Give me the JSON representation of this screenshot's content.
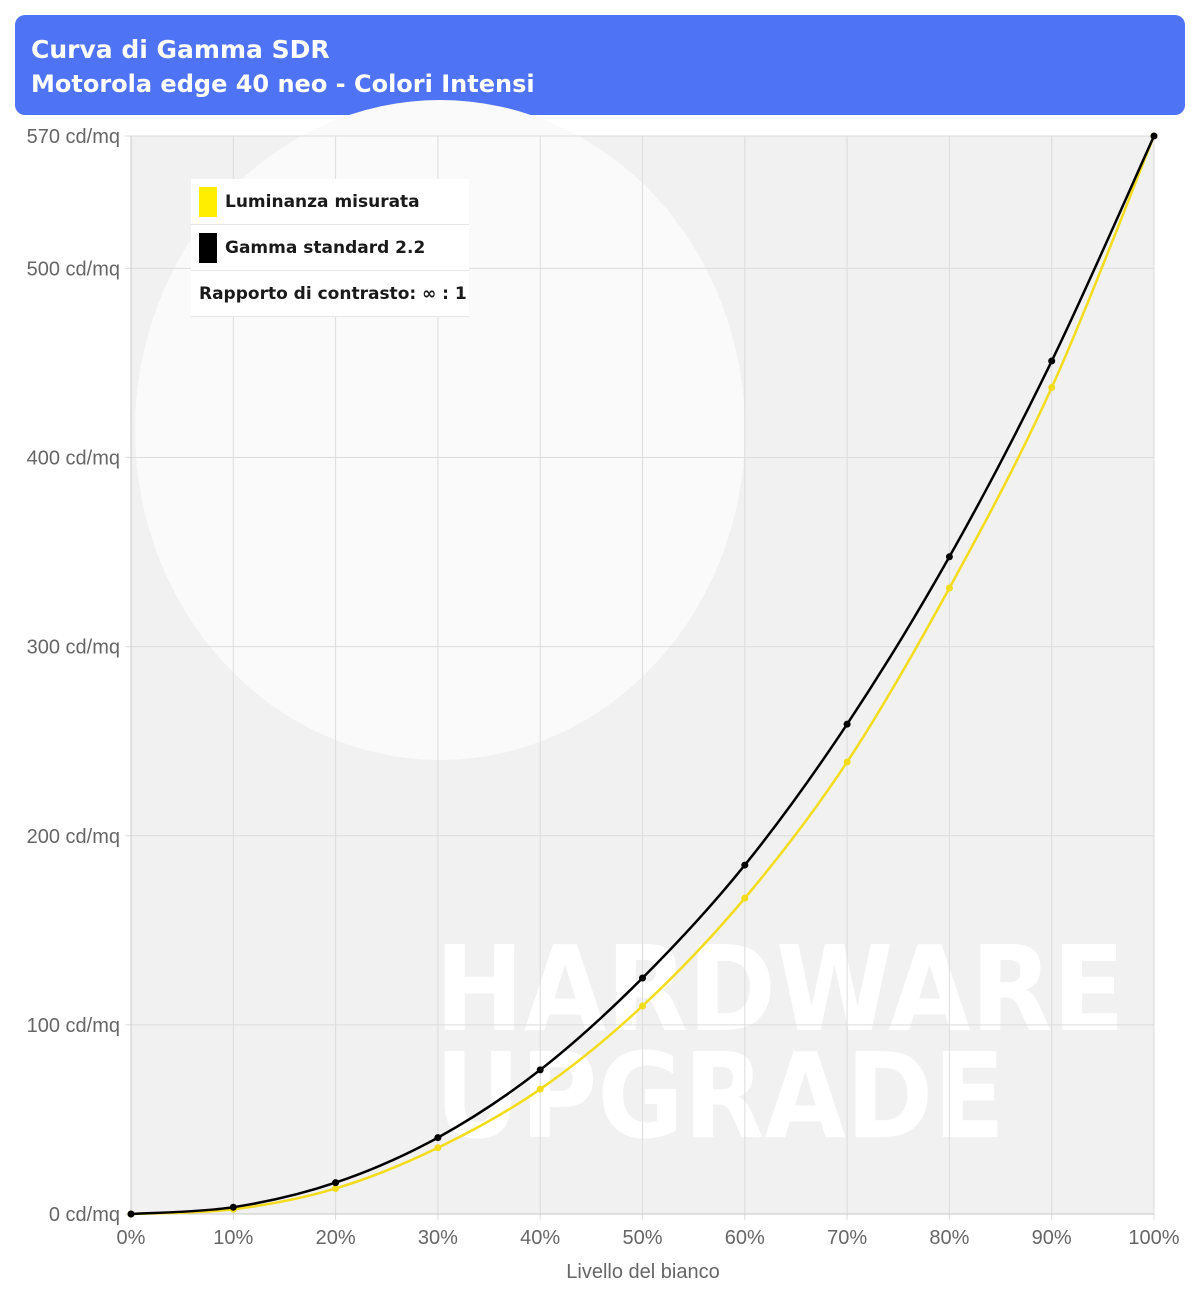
{
  "header": {
    "title": "Curva di Gamma SDR",
    "subtitle": "Motorola edge 40 neo - Colori Intensi",
    "background": "#4f73f5"
  },
  "legend": {
    "measured_label": "Luminanza misurata",
    "standard_label": "Gamma standard 2.2",
    "contrast_label": "Rapporto di contrasto: ∞ : 1"
  },
  "watermark": {
    "line1": "HARDWARE",
    "line2": "UPGRADE"
  },
  "chart_data": {
    "type": "line",
    "xlabel": "Livello del bianco",
    "ylabel": "",
    "x": [
      0,
      10,
      20,
      30,
      40,
      50,
      60,
      70,
      80,
      90,
      100
    ],
    "x_tick_labels": [
      "0%",
      "10%",
      "20%",
      "30%",
      "40%",
      "50%",
      "60%",
      "70%",
      "80%",
      "90%",
      "100%"
    ],
    "y_ticks": [
      0,
      100,
      200,
      300,
      400,
      500,
      570
    ],
    "y_tick_labels": [
      "0 cd/mq",
      "100 cd/mq",
      "200 cd/mq",
      "300 cd/mq",
      "400 cd/mq",
      "500 cd/mq",
      "570 cd/mq"
    ],
    "ylim": [
      0,
      570
    ],
    "xlim": [
      0,
      100
    ],
    "grid": true,
    "legend_position": "top-left",
    "series": [
      {
        "name": "Luminanza misurata",
        "color": "#f2dc1c",
        "values": [
          0,
          2.5,
          13.5,
          35,
          66,
          110,
          167,
          239,
          331,
          437,
          570
        ]
      },
      {
        "name": "Gamma standard 2.2",
        "color": "#000000",
        "values": [
          0,
          3.6,
          16.6,
          40.4,
          76.2,
          124.8,
          184.5,
          259,
          347.5,
          451,
          570
        ]
      }
    ]
  }
}
